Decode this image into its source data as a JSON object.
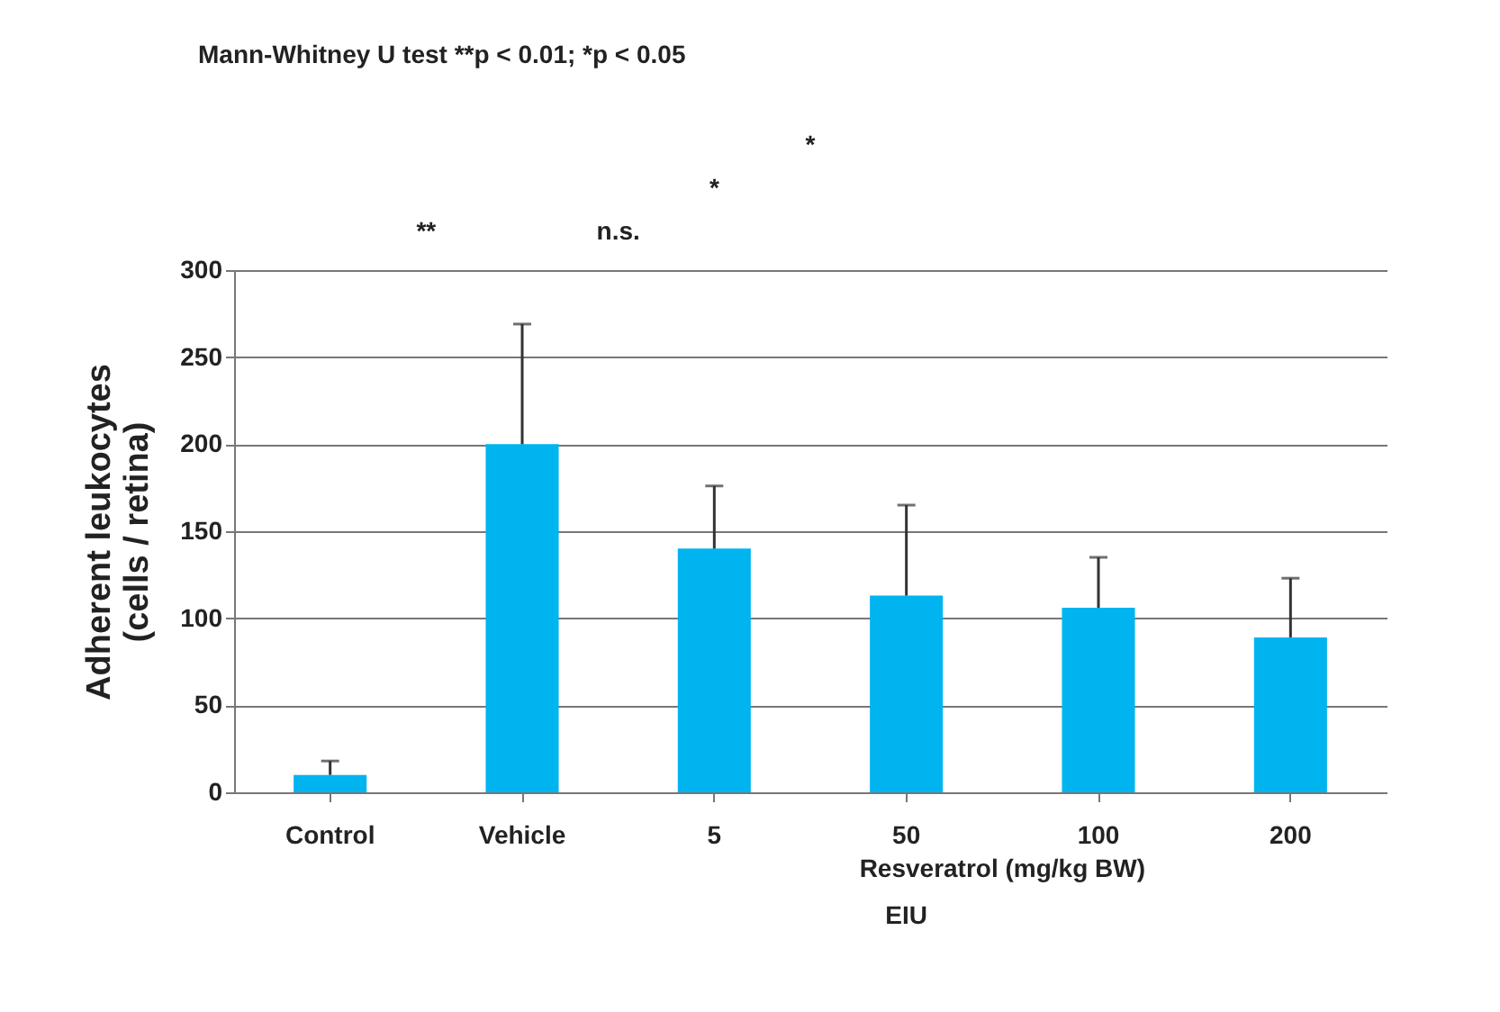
{
  "chart_data": {
    "type": "bar",
    "title": "Mann-Whitney U test **p < 0.01; *p < 0.05",
    "ylabel": "Adherent leukocytes\n(cells / retina)",
    "categories": [
      "Control",
      "Vehicle",
      "5",
      "50",
      "100",
      "200"
    ],
    "series": [
      {
        "color": "#00b4ef",
        "values": [
          10,
          200,
          140,
          113,
          106,
          89
        ],
        "errors": [
          [
            10,
            18
          ],
          [
            200,
            269
          ],
          [
            140,
            176
          ],
          [
            113,
            165
          ],
          [
            106,
            135
          ],
          [
            89,
            123
          ]
        ]
      }
    ],
    "ylim": [
      0,
      300
    ],
    "yticks": [
      0,
      50,
      100,
      150,
      200,
      250,
      300
    ],
    "grid": "y",
    "annotations": [
      "**",
      "n.s.",
      "*",
      "*",
      "Resveratrol (mg/kg BW)",
      "EIU"
    ]
  }
}
